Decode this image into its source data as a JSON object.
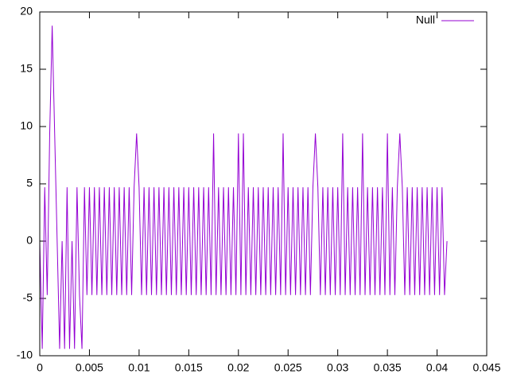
{
  "chart_data": {
    "type": "line",
    "x": [
      0,
      0.00025,
      0.0005,
      0.00075,
      0.001,
      0.00125,
      0.0015,
      0.00175,
      0.002,
      0.00225,
      0.0025,
      0.00275,
      0.003,
      0.00325,
      0.0035,
      0.00375,
      0.004,
      0.00425,
      0.0045,
      0.00475,
      0.005,
      0.00525,
      0.0055,
      0.00575,
      0.006,
      0.00625,
      0.0065,
      0.00675,
      0.007,
      0.00725,
      0.0075,
      0.00775,
      0.008,
      0.00825,
      0.0085,
      0.00875,
      0.009,
      0.00925,
      0.0095,
      0.00975,
      0.01,
      0.01025,
      0.0105,
      0.01075,
      0.011,
      0.01125,
      0.0115,
      0.01175,
      0.012,
      0.01225,
      0.0125,
      0.01275,
      0.013,
      0.01325,
      0.0135,
      0.01375,
      0.014,
      0.01425,
      0.0145,
      0.01475,
      0.015,
      0.01525,
      0.0155,
      0.01575,
      0.016,
      0.01625,
      0.0165,
      0.01675,
      0.017,
      0.01725,
      0.0175,
      0.01775,
      0.018,
      0.01825,
      0.0185,
      0.01875,
      0.019,
      0.01925,
      0.0195,
      0.01975,
      0.02,
      0.02025,
      0.0205,
      0.02075,
      0.021,
      0.02125,
      0.0215,
      0.02175,
      0.022,
      0.02225,
      0.0225,
      0.02275,
      0.023,
      0.02325,
      0.0235,
      0.02375,
      0.024,
      0.02425,
      0.0245,
      0.02475,
      0.025,
      0.02525,
      0.0255,
      0.02575,
      0.026,
      0.02625,
      0.0265,
      0.02675,
      0.027,
      0.02725,
      0.0275,
      0.02775,
      0.028,
      0.02825,
      0.0285,
      0.02875,
      0.029,
      0.02925,
      0.0295,
      0.02975,
      0.03,
      0.03025,
      0.0305,
      0.03075,
      0.031,
      0.03125,
      0.0315,
      0.03175,
      0.032,
      0.03225,
      0.0325,
      0.03275,
      0.033,
      0.03325,
      0.0335,
      0.03375,
      0.034,
      0.03425,
      0.0345,
      0.03475,
      0.035,
      0.03525,
      0.0355,
      0.03575,
      0.036,
      0.03625,
      0.0365,
      0.03675,
      0.037,
      0.03725,
      0.0375,
      0.03775,
      0.038,
      0.03825,
      0.0385,
      0.03875,
      0.039,
      0.03925,
      0.0395,
      0.03975,
      0.04,
      0.04025,
      0.0405,
      0.04075,
      0.041
    ],
    "series": [
      {
        "name": "Null",
        "color": "#9400d3",
        "values": [
          0,
          -9.4,
          4.7,
          -4.7,
          9.4,
          18.8,
          9.4,
          0,
          -9.4,
          0,
          -9.4,
          4.7,
          -9.4,
          0,
          -9.4,
          4.7,
          -4.7,
          -9.4,
          4.7,
          -4.7,
          4.7,
          -4.7,
          4.7,
          -4.7,
          4.7,
          -4.7,
          4.7,
          -4.7,
          4.7,
          -4.7,
          4.7,
          -4.7,
          4.7,
          -4.7,
          4.7,
          -4.7,
          4.7,
          -4.7,
          4.7,
          9.4,
          4.7,
          -4.7,
          4.7,
          -4.7,
          4.7,
          -4.7,
          4.7,
          -4.7,
          4.7,
          -4.7,
          4.7,
          -4.7,
          4.7,
          -4.7,
          4.7,
          -4.7,
          4.7,
          -4.7,
          4.7,
          -4.7,
          4.7,
          -4.7,
          4.7,
          -4.7,
          4.7,
          -4.7,
          4.7,
          -4.7,
          4.7,
          -4.7,
          9.4,
          -4.7,
          4.7,
          -4.7,
          4.7,
          -4.7,
          4.7,
          -4.7,
          4.7,
          -4.7,
          9.4,
          -4.7,
          9.4,
          -4.7,
          4.7,
          -4.7,
          4.7,
          -4.7,
          4.7,
          -4.7,
          4.7,
          -4.7,
          4.7,
          -4.7,
          4.7,
          -4.7,
          4.7,
          -4.7,
          9.4,
          -4.7,
          4.7,
          -4.7,
          4.7,
          -4.7,
          4.7,
          -4.7,
          4.7,
          -4.7,
          4.7,
          -4.7,
          4.7,
          9.4,
          4.7,
          -4.7,
          4.7,
          -4.7,
          4.7,
          -4.7,
          4.7,
          -4.7,
          4.7,
          -4.7,
          9.4,
          -4.7,
          4.7,
          -4.7,
          4.7,
          -4.7,
          4.7,
          -4.7,
          9.4,
          -4.7,
          4.7,
          -4.7,
          4.7,
          -4.7,
          4.7,
          -4.7,
          4.7,
          -4.7,
          9.4,
          -4.7,
          4.7,
          -4.7,
          4.7,
          9.4,
          4.7,
          -4.7,
          4.7,
          -4.7,
          4.7,
          -4.7,
          4.7,
          -4.7,
          4.7,
          -4.7,
          4.7,
          -4.7,
          4.7,
          -4.7,
          4.7,
          -4.7,
          4.7,
          -4.7,
          0
        ]
      }
    ],
    "xlim": [
      0,
      0.045
    ],
    "xticks": [
      0,
      0.005,
      0.01,
      0.015,
      0.02,
      0.025,
      0.03,
      0.035,
      0.04,
      0.045
    ],
    "ylim": [
      -10,
      20
    ],
    "yticks": [
      -10,
      -5,
      0,
      5,
      10,
      15,
      20
    ],
    "legend": "top-right"
  }
}
